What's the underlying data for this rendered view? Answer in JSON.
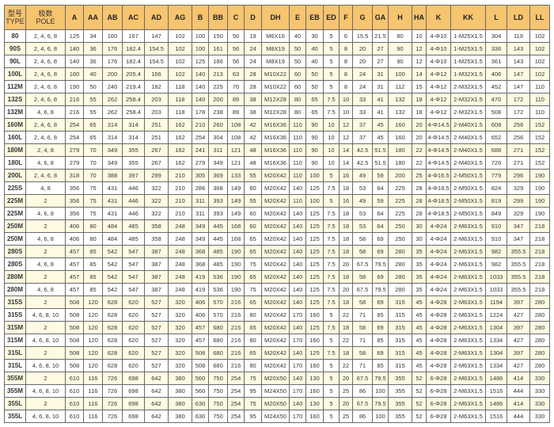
{
  "colors": {
    "header_bg": "#f7c46f",
    "alt_row_bg": "#fffbe2",
    "border": "#6a6a6a"
  },
  "table": {
    "headers": [
      {
        "cn": "型号",
        "en": "TYPE"
      },
      {
        "cn": "极数",
        "en": "POLE"
      },
      {
        "en": "A"
      },
      {
        "en": "AA"
      },
      {
        "en": "AB"
      },
      {
        "en": "AC"
      },
      {
        "en": "AD"
      },
      {
        "en": "AG"
      },
      {
        "en": "B"
      },
      {
        "en": "BB"
      },
      {
        "en": "C"
      },
      {
        "en": "D"
      },
      {
        "en": "DH"
      },
      {
        "en": "E"
      },
      {
        "en": "EB"
      },
      {
        "en": "ED"
      },
      {
        "en": "F"
      },
      {
        "en": "G"
      },
      {
        "en": "GA"
      },
      {
        "en": "H"
      },
      {
        "en": "HA"
      },
      {
        "en": "K"
      },
      {
        "en": "KK"
      },
      {
        "en": "L"
      },
      {
        "en": "LD"
      },
      {
        "en": "LL"
      }
    ],
    "rows": [
      [
        "80",
        "2, 4, 6, 8",
        "125",
        "34",
        "160",
        "167",
        "147",
        "102",
        "100",
        "150",
        "50",
        "19",
        "M6X16",
        "40",
        "30",
        "5",
        "6",
        "15.5",
        "21.5",
        "80",
        "10",
        "4-Φ10",
        "1-M25X1.5",
        "304",
        "119",
        "102"
      ],
      [
        "90S",
        "2, 4, 6, 8",
        "140",
        "36",
        "176",
        "182.4",
        "154.5",
        "102",
        "100",
        "161",
        "56",
        "24",
        "M8X19",
        "50",
        "40",
        "5",
        "8",
        "20",
        "27",
        "90",
        "12",
        "4-Φ10",
        "1-M25X1.5",
        "336",
        "143",
        "102"
      ],
      [
        "90L",
        "2, 4, 6, 8",
        "140",
        "36",
        "176",
        "182.4",
        "154.5",
        "102",
        "125",
        "186",
        "56",
        "24",
        "M8X19",
        "50",
        "40",
        "5",
        "8",
        "20",
        "27",
        "90",
        "12",
        "4-Φ10",
        "1-M25X1.5",
        "361",
        "143",
        "102"
      ],
      [
        "100L",
        "2, 4, 6, 8",
        "160",
        "40",
        "200",
        "205.4",
        "166",
        "102",
        "140",
        "213",
        "63",
        "28",
        "M10X22",
        "60",
        "50",
        "5",
        "8",
        "24",
        "31",
        "100",
        "14",
        "4-Φ12",
        "1-M32X1.5",
        "406",
        "147",
        "102"
      ],
      [
        "112M",
        "2, 4, 6, 8",
        "190",
        "50",
        "240",
        "219.4",
        "182",
        "118",
        "140",
        "225",
        "70",
        "28",
        "M10X22",
        "60",
        "50",
        "5",
        "8",
        "24",
        "31",
        "112",
        "15",
        "4-Φ12",
        "2-M32X1.5",
        "452",
        "147",
        "110"
      ],
      [
        "132S",
        "2, 4, 6, 8",
        "216",
        "55",
        "262",
        "258.4",
        "203",
        "118",
        "140",
        "200",
        "89",
        "38",
        "M12X28",
        "80",
        "65",
        "7.5",
        "10",
        "33",
        "41",
        "132",
        "18",
        "4-Φ12",
        "2-M32X1.5",
        "470",
        "172",
        "110"
      ],
      [
        "132M",
        "4, 6, 8",
        "216",
        "55",
        "262",
        "258.4",
        "203",
        "118",
        "178",
        "238",
        "89",
        "38",
        "M12X28",
        "80",
        "65",
        "7.5",
        "10",
        "33",
        "41",
        "132",
        "18",
        "4-Φ12",
        "2-M32X1.5",
        "508",
        "172",
        "110"
      ],
      [
        "160M",
        "2, 4, 6, 8",
        "254",
        "65",
        "314",
        "314",
        "251",
        "162",
        "210",
        "260",
        "108",
        "42",
        "M16X36",
        "110",
        "90",
        "10",
        "12",
        "37",
        "45",
        "160",
        "20",
        "4-Φ14.5",
        "2-M40X1.5",
        "608",
        "256",
        "152"
      ],
      [
        "160L",
        "2, 4, 6, 8",
        "254",
        "65",
        "314",
        "314",
        "251",
        "162",
        "254",
        "304",
        "108",
        "42",
        "M16X36",
        "110",
        "90",
        "10",
        "12",
        "37",
        "45",
        "160",
        "20",
        "4-Φ14.5",
        "2-M40X1.5",
        "652",
        "256",
        "152"
      ],
      [
        "180M",
        "2, 4, 8",
        "279",
        "70",
        "349",
        "355",
        "267",
        "162",
        "241",
        "311",
        "121",
        "48",
        "M16X36",
        "110",
        "90",
        "10",
        "14",
        "42.5",
        "51.5",
        "180",
        "22",
        "4-Φ14.5",
        "2-M40X1.5",
        "688",
        "271",
        "152"
      ],
      [
        "180L",
        "4, 6, 8",
        "279",
        "70",
        "349",
        "355",
        "267",
        "162",
        "279",
        "349",
        "121",
        "48",
        "M16X36",
        "110",
        "90",
        "10",
        "14",
        "42.5",
        "51.5",
        "180",
        "22",
        "4-Φ14.5",
        "2-M40X1.5",
        "726",
        "271",
        "152"
      ],
      [
        "200L",
        "2, 4, 6, 8",
        "318",
        "70",
        "388",
        "397",
        "299",
        "210",
        "305",
        "369",
        "133",
        "55",
        "M20X42",
        "110",
        "100",
        "5",
        "16",
        "49",
        "59",
        "200",
        "25",
        "4-Φ16.5",
        "2-M50X1.5",
        "779",
        "296",
        "190"
      ],
      [
        "225S",
        "4, 8",
        "356",
        "75",
        "431",
        "446",
        "322",
        "210",
        "286",
        "368",
        "149",
        "60",
        "M20X42",
        "140",
        "125",
        "7.5",
        "18",
        "53",
        "64",
        "225",
        "28",
        "4-Φ18.5",
        "2-M50X1.5",
        "824",
        "329",
        "190"
      ],
      [
        "225M",
        "2",
        "356",
        "75",
        "431",
        "446",
        "322",
        "210",
        "311",
        "393",
        "149",
        "55",
        "M20X42",
        "110",
        "100",
        "5",
        "16",
        "49",
        "59",
        "225",
        "28",
        "4-Φ18.5",
        "2-M50X1.5",
        "819",
        "299",
        "190"
      ],
      [
        "225M",
        "4, 6, 8",
        "356",
        "75",
        "431",
        "446",
        "322",
        "210",
        "311",
        "393",
        "149",
        "60",
        "M20X42",
        "140",
        "125",
        "7.5",
        "18",
        "53",
        "64",
        "225",
        "28",
        "4-Φ18.5",
        "2-M50X1.5",
        "849",
        "329",
        "190"
      ],
      [
        "250M",
        "2",
        "406",
        "80",
        "484",
        "485",
        "358",
        "248",
        "349",
        "445",
        "168",
        "60",
        "M20X42",
        "140",
        "125",
        "7.5",
        "18",
        "53",
        "64",
        "250",
        "30",
        "4-Φ24",
        "2-M63X1.5",
        "910",
        "347",
        "218"
      ],
      [
        "250M",
        "4, 6, 8",
        "406",
        "80",
        "484",
        "485",
        "358",
        "248",
        "349",
        "445",
        "168",
        "65",
        "M20X42",
        "140",
        "125",
        "7.5",
        "18",
        "58",
        "69",
        "250",
        "30",
        "4-Φ24",
        "2-M63X1.5",
        "910",
        "347",
        "218"
      ],
      [
        "280S",
        "2",
        "457",
        "85",
        "542",
        "547",
        "387",
        "248",
        "368",
        "485",
        "190",
        "65",
        "M20X42",
        "140",
        "125",
        "7.5",
        "18",
        "58",
        "69",
        "280",
        "35",
        "4-Φ24",
        "2-M63X1.5",
        "982",
        "355.5",
        "218"
      ],
      [
        "280S",
        "4, 6, 8",
        "457",
        "85",
        "542",
        "547",
        "387",
        "248",
        "368",
        "485",
        "190",
        "75",
        "M20X42",
        "140",
        "125",
        "7.5",
        "20",
        "67.5",
        "79.5",
        "280",
        "35",
        "4-Φ24",
        "2-M63X1.5",
        "982",
        "355.5",
        "218"
      ],
      [
        "280M",
        "2",
        "457",
        "85",
        "542",
        "547",
        "387",
        "248",
        "419",
        "536",
        "190",
        "65",
        "M20X42",
        "140",
        "125",
        "7.5",
        "18",
        "58",
        "69",
        "280",
        "35",
        "4-Φ24",
        "2-M63X1.5",
        "1033",
        "355.5",
        "218"
      ],
      [
        "280M",
        "4, 6, 8",
        "457",
        "85",
        "542",
        "547",
        "387",
        "248",
        "419",
        "536",
        "190",
        "75",
        "M20X42",
        "140",
        "125",
        "7.5",
        "20",
        "67.5",
        "79.5",
        "280",
        "35",
        "4-Φ24",
        "2-M63X1.5",
        "1033",
        "355.5",
        "218"
      ],
      [
        "315S",
        "2",
        "508",
        "120",
        "628",
        "620",
        "527",
        "320",
        "406",
        "570",
        "216",
        "65",
        "M20X42",
        "140",
        "125",
        "7.5",
        "18",
        "58",
        "69",
        "315",
        "45",
        "4-Φ28",
        "2-M63X1.5",
        "1194",
        "397",
        "280"
      ],
      [
        "315S",
        "4, 6, 8, 10",
        "508",
        "120",
        "628",
        "620",
        "527",
        "320",
        "406",
        "570",
        "216",
        "80",
        "M20X42",
        "170",
        "160",
        "5",
        "22",
        "71",
        "85",
        "315",
        "45",
        "4-Φ28",
        "2-M63X1.5",
        "1224",
        "427",
        "280"
      ],
      [
        "315M",
        "2",
        "508",
        "120",
        "628",
        "620",
        "527",
        "320",
        "457",
        "680",
        "216",
        "65",
        "M20X42",
        "140",
        "125",
        "7.5",
        "18",
        "58",
        "69",
        "315",
        "45",
        "4-Φ28",
        "2-M63X1.5",
        "1304",
        "397",
        "280"
      ],
      [
        "315M",
        "4, 6, 8, 10",
        "508",
        "120",
        "628",
        "620",
        "527",
        "320",
        "457",
        "680",
        "216",
        "80",
        "M20X42",
        "170",
        "160",
        "5",
        "22",
        "71",
        "85",
        "315",
        "45",
        "4-Φ28",
        "2-M63X1.5",
        "1334",
        "427",
        "280"
      ],
      [
        "315L",
        "2",
        "508",
        "120",
        "628",
        "620",
        "527",
        "320",
        "508",
        "680",
        "216",
        "65",
        "M20X42",
        "140",
        "125",
        "7.5",
        "18",
        "58",
        "69",
        "315",
        "45",
        "4-Φ28",
        "2-M63X1.5",
        "1304",
        "397",
        "280"
      ],
      [
        "315L",
        "4, 6, 8, 10",
        "508",
        "120",
        "628",
        "620",
        "527",
        "320",
        "508",
        "680",
        "216",
        "80",
        "M20X42",
        "170",
        "160",
        "5",
        "22",
        "71",
        "85",
        "315",
        "45",
        "4-Φ28",
        "2-M63X1.5",
        "1334",
        "427",
        "280"
      ],
      [
        "355M",
        "2",
        "610",
        "116",
        "726",
        "698",
        "642",
        "380",
        "560",
        "750",
        "254",
        "75",
        "M20X50",
        "140",
        "130",
        "5",
        "20",
        "67.5",
        "79.5",
        "355",
        "52",
        "6-Φ28",
        "2-M63X1.5",
        "1486",
        "414",
        "330"
      ],
      [
        "355M",
        "4, 6, 8, 10",
        "610",
        "116",
        "726",
        "698",
        "642",
        "380",
        "560",
        "750",
        "254",
        "95",
        "M24X50",
        "170",
        "160",
        "5",
        "25",
        "86",
        "100",
        "355",
        "52",
        "6-Φ28",
        "2-M63X1.5",
        "1516",
        "444",
        "330"
      ],
      [
        "355L",
        "2",
        "610",
        "116",
        "726",
        "698",
        "642",
        "380",
        "630",
        "750",
        "254",
        "75",
        "M20X50",
        "140",
        "130",
        "5",
        "20",
        "67.5",
        "79.5",
        "355",
        "52",
        "6-Φ28",
        "2-M63X1.5",
        "1486",
        "414",
        "330"
      ],
      [
        "355L",
        "4, 6, 8, 10",
        "610",
        "116",
        "726",
        "698",
        "642",
        "380",
        "630",
        "750",
        "254",
        "95",
        "M24X50",
        "170",
        "160",
        "5",
        "25",
        "86",
        "100",
        "355",
        "52",
        "6-Φ28",
        "2-M63X1.5",
        "1516",
        "444",
        "330"
      ]
    ]
  }
}
